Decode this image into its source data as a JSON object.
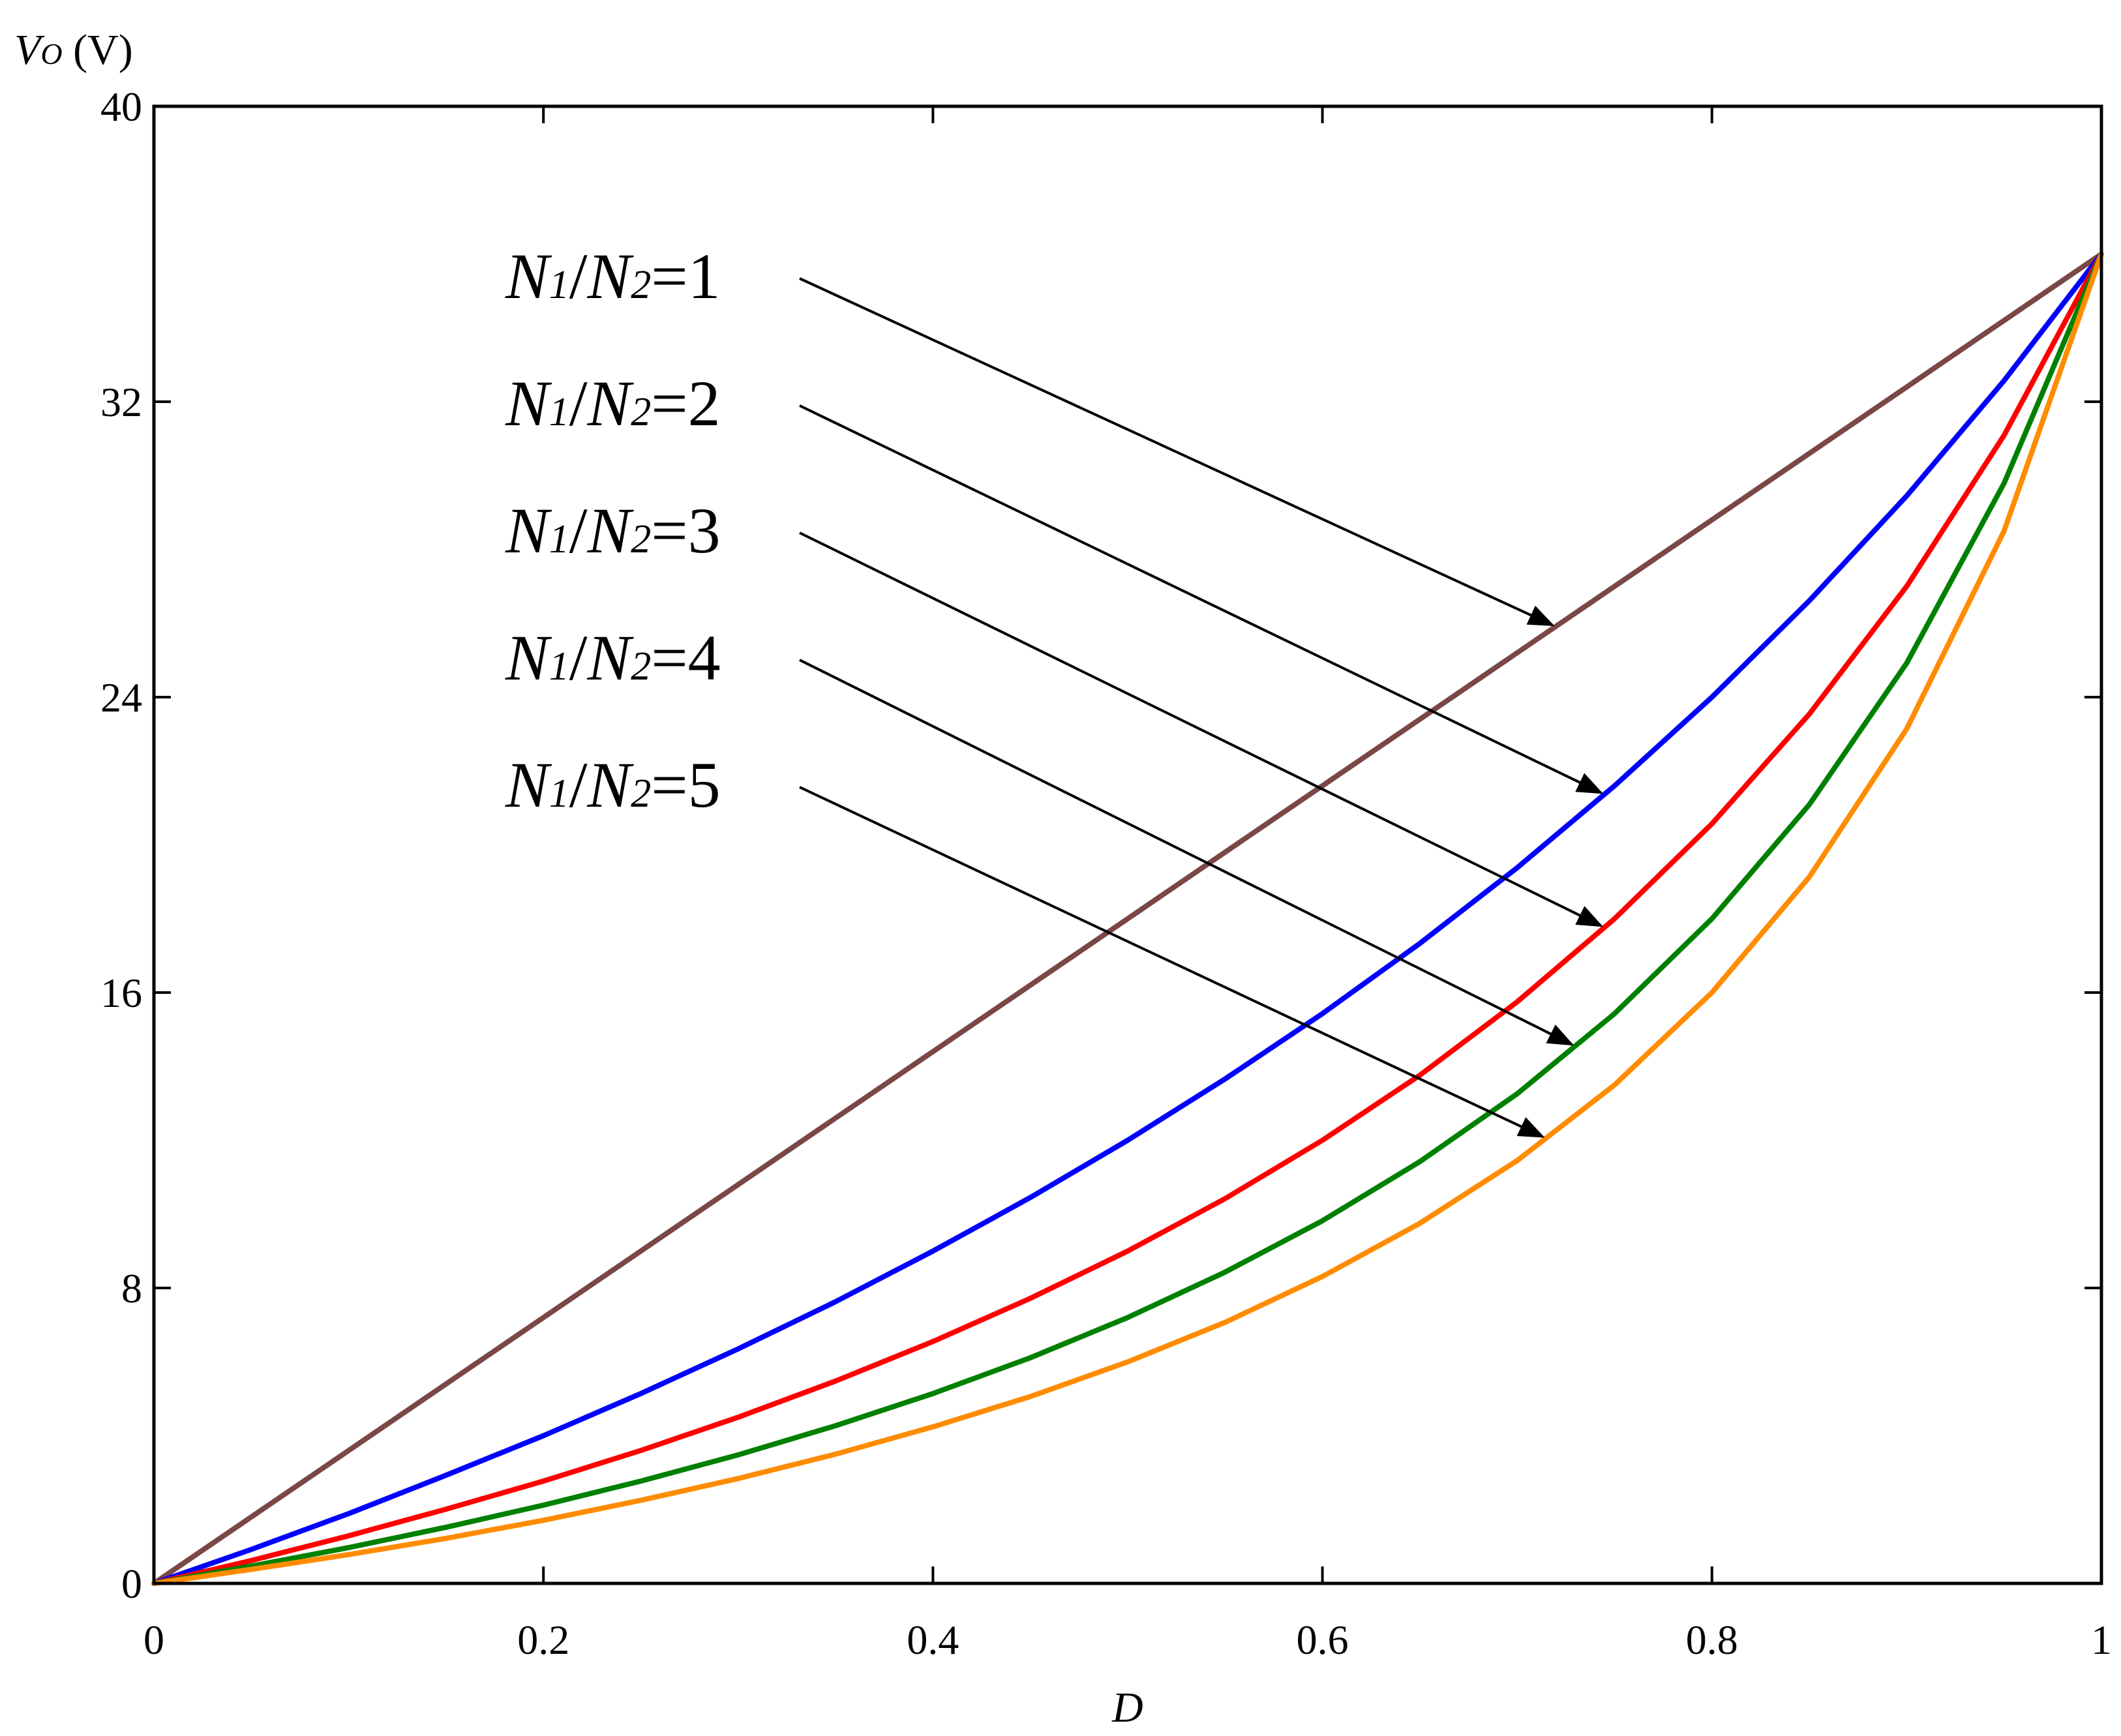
{
  "chart_data": {
    "type": "line",
    "title": "",
    "xlabel": "D",
    "ylabel": {
      "main": "V",
      "sub": "O",
      "unit": "(V)"
    },
    "xlim": [
      0,
      1
    ],
    "ylim": [
      0,
      40
    ],
    "xticks": [
      "0",
      "0.2",
      "0.4",
      "0.6",
      "0.8",
      "1"
    ],
    "yticks": [
      "0",
      "8",
      "16",
      "24",
      "32",
      "40"
    ],
    "grid": false,
    "x": [
      0,
      0.05,
      0.1,
      0.15,
      0.2,
      0.25,
      0.3,
      0.35,
      0.4,
      0.45,
      0.5,
      0.55,
      0.6,
      0.65,
      0.7,
      0.75,
      0.8,
      0.85,
      0.9,
      0.95,
      1.0
    ],
    "series": [
      {
        "name": "N1/N2=1",
        "color": "#7a4646",
        "values": [
          0,
          1.8,
          3.6,
          5.4,
          7.2,
          9.0,
          10.8,
          12.6,
          14.4,
          16.2,
          18.0,
          19.8,
          21.6,
          23.4,
          25.2,
          27.0,
          28.8,
          30.6,
          32.4,
          34.2,
          36.0
        ]
      },
      {
        "name": "N1/N2=2",
        "color": "#0000ff",
        "values": [
          0,
          0.92,
          1.89,
          2.93,
          4.0,
          5.14,
          6.35,
          7.63,
          9.0,
          10.45,
          12.0,
          13.66,
          15.43,
          17.33,
          19.38,
          21.6,
          24.0,
          26.61,
          29.45,
          32.57,
          36.0
        ]
      },
      {
        "name": "N1/N2=3",
        "color": "#ff0000",
        "values": [
          0,
          0.62,
          1.29,
          2.01,
          2.77,
          3.6,
          4.5,
          5.48,
          6.55,
          7.72,
          9.0,
          10.42,
          12.0,
          13.76,
          15.75,
          18.0,
          20.57,
          23.54,
          27.0,
          31.09,
          36.0
        ]
      },
      {
        "name": "N1/N2=4",
        "color": "#008000",
        "values": [
          0,
          0.47,
          0.97,
          1.52,
          2.12,
          2.77,
          3.48,
          4.27,
          5.14,
          6.11,
          7.2,
          8.43,
          9.82,
          11.42,
          13.26,
          15.43,
          18.0,
          21.09,
          24.92,
          29.79,
          36.0
        ]
      },
      {
        "name": "N1/N2=5",
        "color": "#ff8c00",
        "values": [
          0,
          0.38,
          0.78,
          1.22,
          1.71,
          2.25,
          2.84,
          3.5,
          4.24,
          5.06,
          6.0,
          7.07,
          8.31,
          9.75,
          11.45,
          13.5,
          16.0,
          19.13,
          23.14,
          28.5,
          36.0
        ]
      }
    ],
    "annotations": [
      {
        "main1": "N",
        "sub1": "1",
        "sep": "/",
        "main2": "N",
        "sub2": "2",
        "value": "=1",
        "series": 0,
        "target_x": 0.72
      },
      {
        "main1": "N",
        "sub1": "1",
        "sep": "/",
        "main2": "N",
        "sub2": "2",
        "value": "=2",
        "series": 1,
        "target_x": 0.745
      },
      {
        "main1": "N",
        "sub1": "1",
        "sep": "/",
        "main2": "N",
        "sub2": "2",
        "value": "=3",
        "series": 2,
        "target_x": 0.745
      },
      {
        "main1": "N",
        "sub1": "1",
        "sep": "/",
        "main2": "N",
        "sub2": "2",
        "value": "=4",
        "series": 3,
        "target_x": 0.73
      },
      {
        "main1": "N",
        "sub1": "1",
        "sep": "/",
        "main2": "N",
        "sub2": "2",
        "value": "=5",
        "series": 4,
        "target_x": 0.715
      }
    ]
  }
}
